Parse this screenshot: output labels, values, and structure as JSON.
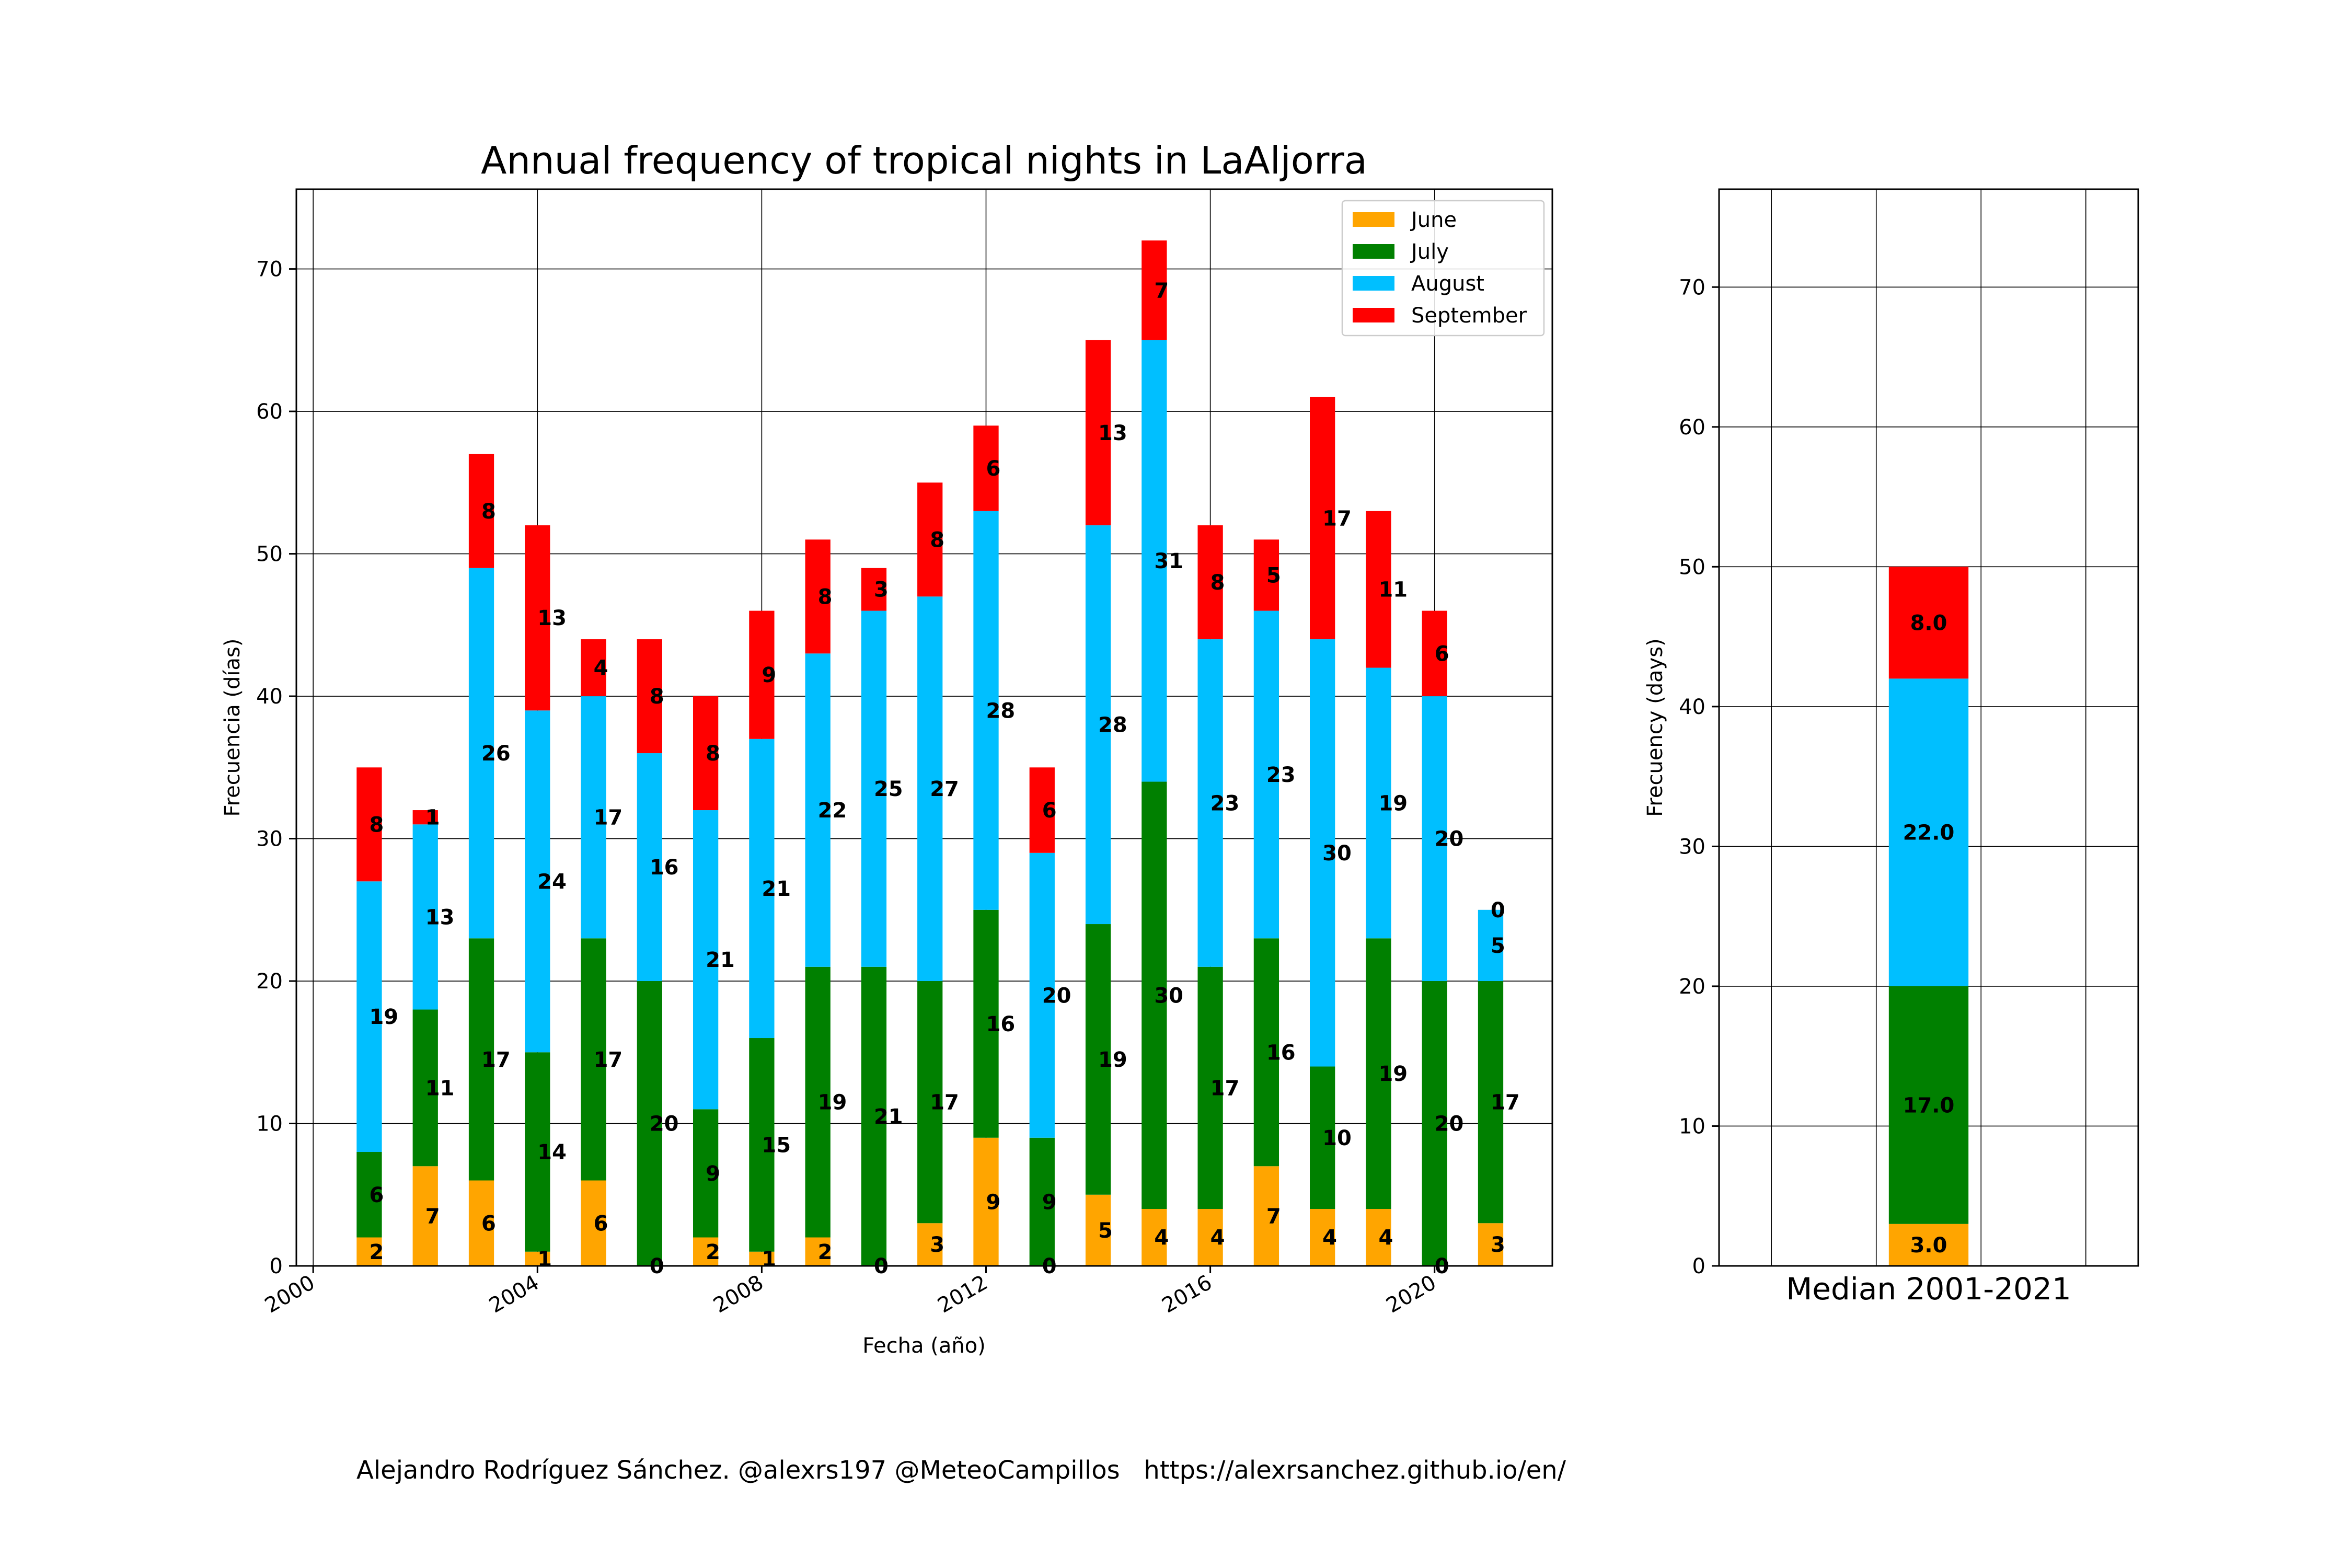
{
  "chart_data": [
    {
      "type": "bar",
      "stacked": true,
      "title": "Annual frequency of tropical nights in LaAljorra",
      "xlabel": "Fecha (año)",
      "ylabel": "Frecuencia (días)",
      "xlim": [
        1999.7,
        2022.1
      ],
      "ylim": [
        0,
        75.6
      ],
      "xticks": [
        "2000",
        "2004",
        "2008",
        "2012",
        "2016",
        "2020"
      ],
      "yticks": [
        "0",
        "10",
        "20",
        "30",
        "40",
        "50",
        "60",
        "70"
      ],
      "grid": true,
      "legend_position": "upper right",
      "categories": [
        2001,
        2002,
        2003,
        2004,
        2005,
        2006,
        2007,
        2008,
        2009,
        2010,
        2011,
        2012,
        2013,
        2014,
        2015,
        2016,
        2017,
        2018,
        2019,
        2020,
        2021
      ],
      "series": [
        {
          "name": "June",
          "color": "#ffa500",
          "values": [
            2,
            7,
            6,
            1,
            6,
            0,
            2,
            1,
            2,
            0,
            3,
            9,
            0,
            5,
            4,
            4,
            7,
            4,
            4,
            0,
            3
          ]
        },
        {
          "name": "July",
          "color": "#008000",
          "values": [
            6,
            11,
            17,
            14,
            17,
            20,
            9,
            15,
            19,
            21,
            17,
            16,
            9,
            19,
            30,
            17,
            16,
            10,
            19,
            20,
            17
          ]
        },
        {
          "name": "August",
          "color": "#00bfff",
          "values": [
            19,
            13,
            26,
            24,
            17,
            16,
            21,
            21,
            22,
            25,
            27,
            28,
            20,
            28,
            31,
            23,
            23,
            30,
            19,
            20,
            5
          ]
        },
        {
          "name": "September",
          "color": "#ff0000",
          "values": [
            8,
            1,
            8,
            13,
            4,
            8,
            8,
            9,
            8,
            3,
            8,
            6,
            6,
            13,
            7,
            8,
            5,
            17,
            11,
            6,
            0
          ]
        }
      ]
    },
    {
      "type": "bar",
      "stacked": true,
      "title": "",
      "xlabel": "Median 2001-2021",
      "ylabel": "Frecuency (days)",
      "ylim": [
        0,
        77
      ],
      "yticks": [
        "0",
        "10",
        "20",
        "30",
        "40",
        "50",
        "60",
        "70"
      ],
      "grid": true,
      "series": [
        {
          "name": "June",
          "color": "#ffa500",
          "values": [
            3.0
          ]
        },
        {
          "name": "July",
          "color": "#008000",
          "values": [
            17.0
          ]
        },
        {
          "name": "August",
          "color": "#00bfff",
          "values": [
            22.0
          ]
        },
        {
          "name": "September",
          "color": "#ff0000",
          "values": [
            8.0
          ]
        }
      ]
    }
  ],
  "credit": "Alejandro Rodríguez Sánchez. @alexrs197 @MeteoCampillos   https://alexrsanchez.github.io/en/"
}
